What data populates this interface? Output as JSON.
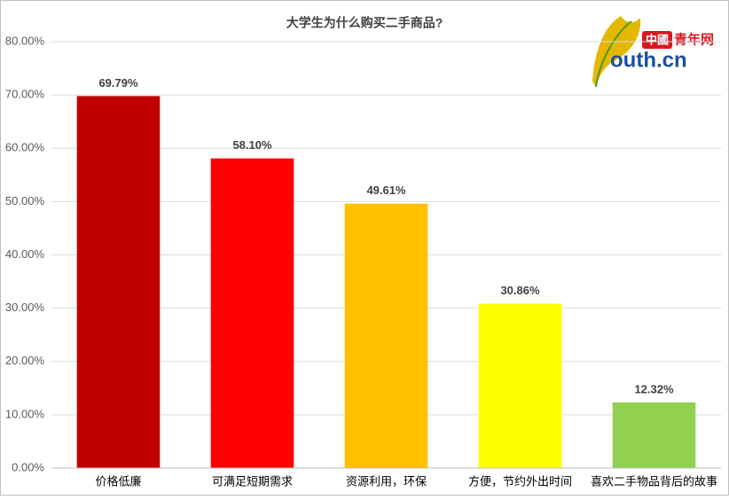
{
  "chart_data": {
    "type": "bar",
    "title": "大学生为什么购买二手商品?",
    "logo": {
      "badge": "中國",
      "name": "青年网",
      "domain": "outh.cn"
    },
    "categories": [
      "价格低廉",
      "可满足短期需求",
      "资源利用，环保",
      "方便，节约外出时间",
      "喜欢二手物品背后的故事"
    ],
    "values": [
      69.79,
      58.1,
      49.61,
      30.86,
      12.32
    ],
    "value_labels": [
      "69.79%",
      "58.10%",
      "49.61%",
      "30.86%",
      "12.32%"
    ],
    "colors": [
      "#c00000",
      "#ff0000",
      "#ffc000",
      "#ffff00",
      "#92d050"
    ],
    "ylim": [
      0,
      80
    ],
    "yticks": [
      {
        "value": 0,
        "label": "0.00%"
      },
      {
        "value": 10,
        "label": "10.00%"
      },
      {
        "value": 20,
        "label": "20.00%"
      },
      {
        "value": 30,
        "label": "30.00%"
      },
      {
        "value": 40,
        "label": "40.00%"
      },
      {
        "value": 50,
        "label": "50.00%"
      },
      {
        "value": 60,
        "label": "60.00%"
      },
      {
        "value": 70,
        "label": "70.00%"
      },
      {
        "value": 80,
        "label": "80.00%"
      }
    ],
    "grid": true
  }
}
